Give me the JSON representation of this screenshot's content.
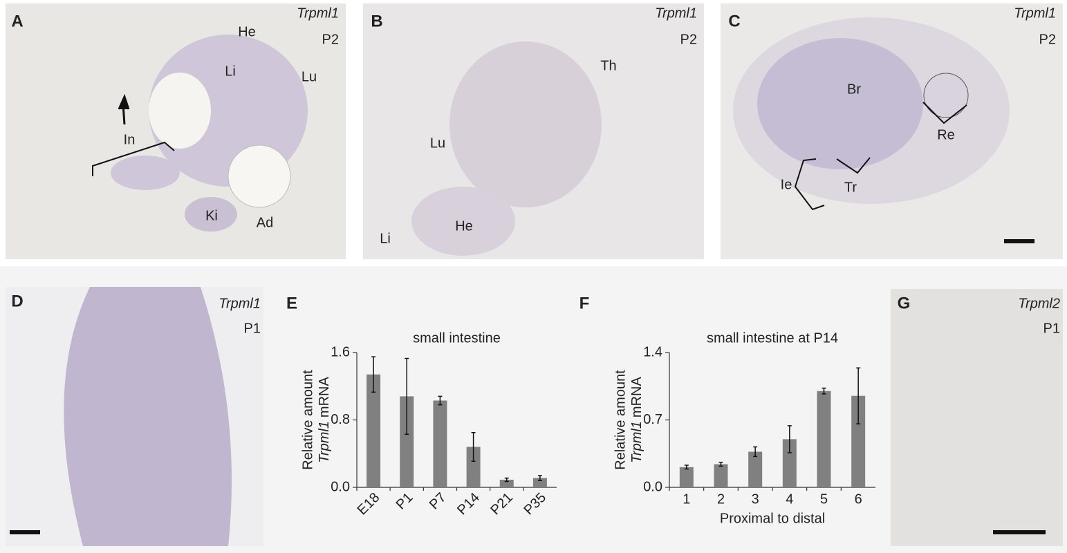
{
  "panels": [
    {
      "letter": "A",
      "gene": "Trpml1",
      "stage": "P2",
      "labels": [
        "He",
        "Li",
        "Lu",
        "In",
        "Ki",
        "Ad"
      ]
    },
    {
      "letter": "B",
      "gene": "Trpml1",
      "stage": "P2",
      "labels": [
        "Th",
        "Lu",
        "He",
        "Li"
      ]
    },
    {
      "letter": "C",
      "gene": "Trpml1",
      "stage": "P2",
      "labels": [
        "Br",
        "Re",
        "Tr",
        "Ie"
      ]
    },
    {
      "letter": "D",
      "gene": "Trpml1",
      "stage": "P1",
      "labels": []
    },
    {
      "letter": "G",
      "gene": "Trpml2",
      "stage": "P1",
      "labels": []
    }
  ],
  "chart_data": [
    {
      "type": "bar",
      "letter": "E",
      "title": "small intestine",
      "ylabel_line1": "Relative amount",
      "ylabel_gene": "Trpml1",
      "ylabel_unit": "mRNA",
      "categories": [
        "E18",
        "P1",
        "P7",
        "P14",
        "P21",
        "P35"
      ],
      "series": [
        {
          "color": "#808080",
          "values": [
            1.34,
            1.08,
            1.03,
            0.48,
            0.09,
            0.11
          ],
          "errors": [
            0.21,
            0.45,
            0.05,
            0.17,
            0.02,
            0.03
          ]
        }
      ],
      "ylim": [
        0,
        1.6
      ],
      "yticks": [
        {
          "value": 0,
          "label": "0.0"
        },
        0.8,
        1.6
      ]
    },
    {
      "type": "bar",
      "letter": "F",
      "title": "small intestine at P14",
      "ylabel_line1": "Relative amount",
      "ylabel_gene": "Trpml1",
      "ylabel_unit": "mRNA",
      "xlabel": "Proximal to distal",
      "categories": [
        "1",
        "2",
        "3",
        "4",
        "5",
        "6"
      ],
      "series": [
        {
          "color": "#808080",
          "values": [
            0.21,
            0.24,
            0.37,
            0.5,
            1.0,
            0.95
          ],
          "errors": [
            0.02,
            0.02,
            0.05,
            0.14,
            0.03,
            0.29
          ]
        }
      ],
      "ylim": [
        0,
        1.4
      ],
      "yticks": [
        {
          "value": 0,
          "label": "0.0"
        },
        0.7,
        1.4
      ]
    }
  ]
}
